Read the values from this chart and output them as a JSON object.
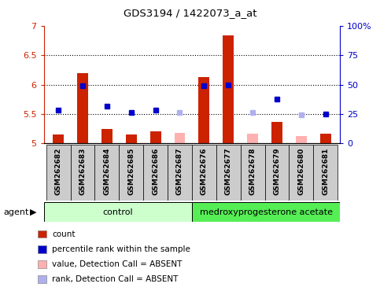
{
  "title": "GDS3194 / 1422073_a_at",
  "samples": [
    "GSM262682",
    "GSM262683",
    "GSM262684",
    "GSM262685",
    "GSM262686",
    "GSM262687",
    "GSM262676",
    "GSM262677",
    "GSM262678",
    "GSM262679",
    "GSM262680",
    "GSM262681"
  ],
  "bar_values": [
    5.15,
    6.2,
    5.25,
    5.15,
    5.2,
    null,
    6.13,
    6.83,
    null,
    5.37,
    null,
    5.17
  ],
  "bar_absent": [
    null,
    null,
    null,
    null,
    null,
    5.18,
    null,
    null,
    5.17,
    null,
    5.12,
    null
  ],
  "rank_values": [
    5.56,
    5.98,
    5.63,
    5.53,
    5.57,
    null,
    5.98,
    6.0,
    null,
    5.75,
    null,
    5.5
  ],
  "rank_absent": [
    null,
    null,
    null,
    null,
    null,
    5.53,
    null,
    null,
    5.53,
    null,
    5.48,
    null
  ],
  "ylim": [
    5.0,
    7.0
  ],
  "yticks": [
    5.0,
    5.5,
    6.0,
    6.5,
    7.0
  ],
  "ytick_labels": [
    "5",
    "5.5",
    "6",
    "6.5",
    "7"
  ],
  "right_ytick_labels": [
    "0",
    "25",
    "50",
    "75",
    "100%"
  ],
  "dotted_lines": [
    5.5,
    6.0,
    6.5
  ],
  "bar_color": "#cc2200",
  "bar_absent_color": "#ffb0b0",
  "rank_color": "#0000cc",
  "rank_absent_color": "#b0b0ee",
  "left_axis_color": "#cc2200",
  "right_axis_color": "#0000cc",
  "ctrl_color": "#ccffcc",
  "mpa_color": "#66ee66",
  "legend_items": [
    "count",
    "percentile rank within the sample",
    "value, Detection Call = ABSENT",
    "rank, Detection Call = ABSENT"
  ],
  "legend_colors": [
    "#cc2200",
    "#0000cc",
    "#ffb0b0",
    "#b0b0ee"
  ]
}
